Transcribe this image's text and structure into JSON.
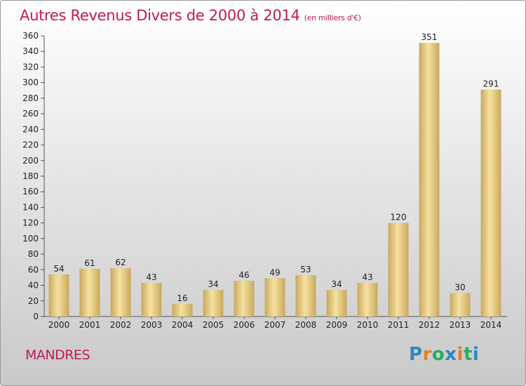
{
  "title": "Autres Revenus Divers de 2000 à 2014",
  "title_unit": "(en milliers d'€)",
  "place": "MANDRES",
  "logo": {
    "text": "Proxiti",
    "letters": [
      {
        "char": "P",
        "color": "#2e86c1"
      },
      {
        "char": "r",
        "color": "#e67e22"
      },
      {
        "char": "o",
        "color": "#27ae60"
      },
      {
        "char": "x",
        "color": "#2e86c1"
      },
      {
        "char": "i",
        "color": "#e67e22"
      },
      {
        "char": "t",
        "color": "#27ae60"
      },
      {
        "char": "i",
        "color": "#2e86c1"
      }
    ]
  },
  "colors": {
    "title": "#c2185b",
    "bar_light": "#f7e1a0",
    "bar_dark": "#c8a85e",
    "axis": "#555555",
    "grid": "#dddddd"
  },
  "chart_data": {
    "type": "bar",
    "title": "Autres Revenus Divers de 2000 à 2014",
    "subtitle": "(en milliers d'€)",
    "categories": [
      "2000",
      "2001",
      "2002",
      "2003",
      "2004",
      "2005",
      "2006",
      "2007",
      "2008",
      "2009",
      "2010",
      "2011",
      "2012",
      "2013",
      "2014"
    ],
    "values": [
      54,
      61,
      62,
      43,
      16,
      34,
      46,
      49,
      53,
      34,
      43,
      120,
      351,
      30,
      291
    ],
    "data_labels": [
      "54",
      "61",
      "62",
      "43",
      "16",
      "34",
      "46",
      "49",
      "53",
      "34",
      "43",
      "120",
      "351",
      "30",
      "291"
    ],
    "yticks": [
      0,
      20,
      40,
      60,
      80,
      100,
      120,
      140,
      160,
      180,
      200,
      220,
      240,
      260,
      280,
      300,
      320,
      340,
      360
    ],
    "ylim": [
      0,
      360
    ],
    "xlabel": "",
    "ylabel": "",
    "grid": false,
    "legend": "none"
  }
}
